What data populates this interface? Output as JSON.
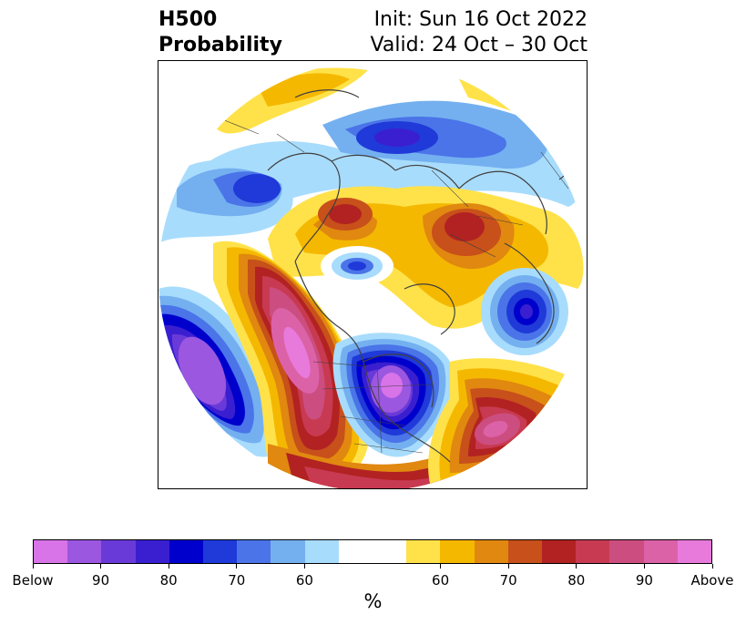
{
  "header": {
    "title_line1": "H500",
    "title_line2": "Probability",
    "init_text": "Init: Sun 16 Oct 2022",
    "valid_text": "Valid: 24 Oct – 30 Oct"
  },
  "map": {
    "projection": "north-polar-stereographic",
    "anomalies": [
      {
        "region": "eastern-pacific",
        "sign": "below",
        "level": "below"
      },
      {
        "region": "central-north-america",
        "sign": "below",
        "level": "below"
      },
      {
        "region": "western-north-america",
        "sign": "above",
        "level": "above"
      },
      {
        "region": "western-atlantic",
        "sign": "above",
        "level": "90"
      },
      {
        "region": "siberia",
        "sign": "above",
        "level": "80"
      },
      {
        "region": "scandinavia",
        "sign": "above",
        "level": "80"
      },
      {
        "region": "northwest-europe",
        "sign": "below",
        "level": "80"
      },
      {
        "region": "east-asia",
        "sign": "below",
        "level": "70"
      }
    ]
  },
  "colorbar": {
    "colors": [
      "#d873e8",
      "#9b57e0",
      "#6a3ad8",
      "#3a1fd0",
      "#0000cc",
      "#1f3ad8",
      "#4a74e8",
      "#74b0f0",
      "#a8dcfc",
      "#ffffff",
      "#ffe24a",
      "#f5b800",
      "#e08810",
      "#c8501a",
      "#b22222",
      "#c83a52",
      "#cc4e80",
      "#dc62a8",
      "#e87adc"
    ],
    "ticks": [
      "Below",
      "90",
      "80",
      "70",
      "60",
      "60",
      "70",
      "80",
      "90",
      "Above"
    ],
    "unit": "%"
  }
}
